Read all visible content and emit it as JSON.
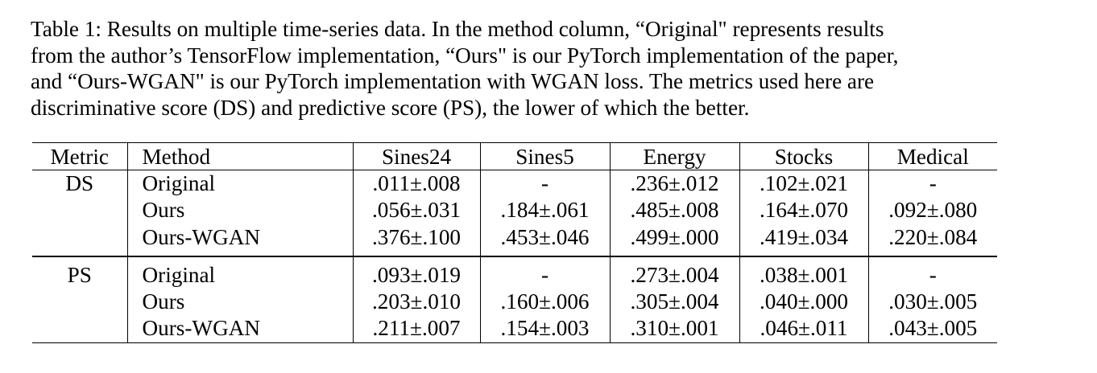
{
  "caption": {
    "lines": [
      "Table 1: Results on multiple time-series data. In the method column, “Original\" represents results",
      "from the author’s TensorFlow implementation, “Ours\" is our PyTorch implementation of the paper,",
      "and “Ours-WGAN\" is our PyTorch implementation with WGAN loss.  The metrics used here are",
      "discriminative score (DS) and predictive score (PS), the lower of which the better."
    ]
  },
  "table": {
    "headers": [
      "Metric",
      "Method",
      "Sines24",
      "Sines5",
      "Energy",
      "Stocks",
      "Medical"
    ],
    "sections": [
      {
        "metric": "DS",
        "rows": [
          {
            "method": "Original",
            "values": [
              ".011±.008",
              "-",
              ".236±.012",
              ".102±.021",
              "-"
            ]
          },
          {
            "method": "Ours",
            "values": [
              ".056±.031",
              ".184±.061",
              ".485±.008",
              ".164±.070",
              ".092±.080"
            ]
          },
          {
            "method": "Ours-WGAN",
            "values": [
              ".376±.100",
              ".453±.046",
              ".499±.000",
              ".419±.034",
              ".220±.084"
            ]
          }
        ]
      },
      {
        "metric": "PS",
        "rows": [
          {
            "method": "Original",
            "values": [
              ".093±.019",
              "-",
              ".273±.004",
              ".038±.001",
              "-"
            ]
          },
          {
            "method": "Ours",
            "values": [
              ".203±.010",
              ".160±.006",
              ".305±.004",
              ".040±.000",
              ".030±.005"
            ]
          },
          {
            "method": "Ours-WGAN",
            "values": [
              ".211±.007",
              ".154±.003",
              ".310±.001",
              ".046±.011",
              ".043±.005"
            ]
          }
        ]
      }
    ]
  }
}
